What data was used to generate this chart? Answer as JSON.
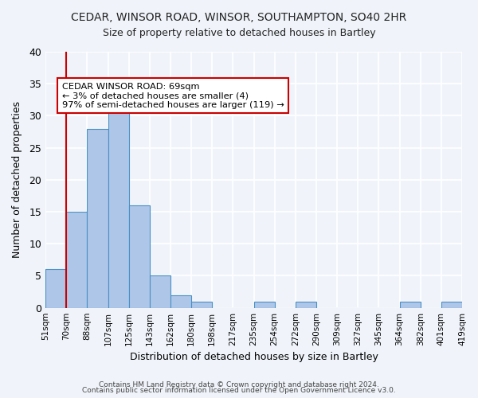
{
  "title": "CEDAR, WINSOR ROAD, WINSOR, SOUTHAMPTON, SO40 2HR",
  "subtitle": "Size of property relative to detached houses in Bartley",
  "xlabel": "Distribution of detached houses by size in Bartley",
  "ylabel": "Number of detached properties",
  "bar_color": "#aec6e8",
  "bar_edge_color": "#4a90c4",
  "background_color": "#f0f4fa",
  "grid_color": "#ffffff",
  "bins": [
    51,
    70,
    88,
    107,
    125,
    143,
    162,
    180,
    198,
    217,
    235,
    254,
    272,
    290,
    309,
    327,
    345,
    364,
    382,
    401,
    419
  ],
  "bin_labels": [
    "51sqm",
    "70sqm",
    "88sqm",
    "107sqm",
    "125sqm",
    "143sqm",
    "162sqm",
    "180sqm",
    "198sqm",
    "217sqm",
    "235sqm",
    "254sqm",
    "272sqm",
    "290sqm",
    "309sqm",
    "327sqm",
    "345sqm",
    "364sqm",
    "382sqm",
    "401sqm",
    "419sqm"
  ],
  "counts": [
    6,
    15,
    28,
    31,
    16,
    5,
    2,
    1,
    0,
    0,
    1,
    0,
    1,
    0,
    0,
    0,
    0,
    1,
    0,
    1
  ],
  "ylim": [
    0,
    40
  ],
  "yticks": [
    0,
    5,
    10,
    15,
    20,
    25,
    30,
    35,
    40
  ],
  "property_sqm": 69,
  "property_label": "CEDAR WINSOR ROAD: 69sqm",
  "annotation_line1": "← 3% of detached houses are smaller (4)",
  "annotation_line2": "97% of semi-detached houses are larger (119) →",
  "annotation_box_color": "#ffffff",
  "annotation_box_edge": "#cc0000",
  "vline_color": "#cc0000",
  "footer1": "Contains HM Land Registry data © Crown copyright and database right 2024.",
  "footer2": "Contains public sector information licensed under the Open Government Licence v3.0."
}
